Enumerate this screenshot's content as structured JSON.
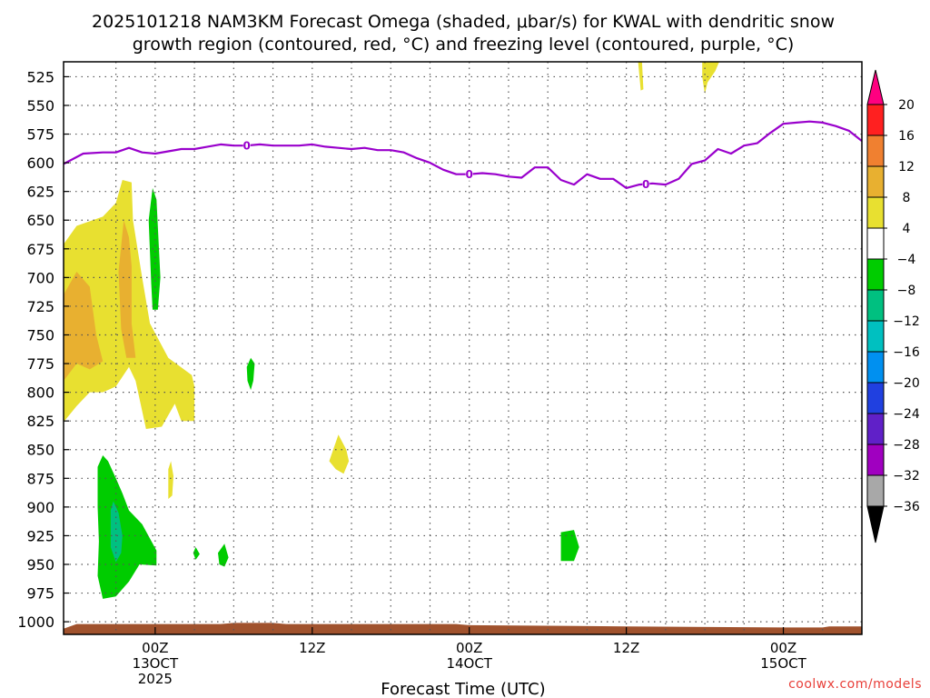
{
  "chart_data": {
    "type": "heatmap",
    "title_lines": [
      "2025101218 NAM3KM Forecast Omega (shaded, μbar/s) for KWAL with dendritic snow",
      "growth region (contoured, red, °C) and freezing level (contoured, purple, °C)"
    ],
    "xlabel": "Forecast Time (UTC)",
    "credit": "coolwx.com/models",
    "x_range_hours": [
      -7,
      54
    ],
    "y_range_hpa": [
      512,
      1011
    ],
    "y_scale": "linear-reversed",
    "grid": true,
    "y_ticks": [
      525,
      550,
      575,
      600,
      625,
      650,
      675,
      700,
      725,
      750,
      775,
      800,
      825,
      850,
      875,
      900,
      925,
      950,
      975,
      1000
    ],
    "x_ticks": [
      {
        "h": 0,
        "lines": [
          "00Z",
          "13OCT",
          "2025"
        ]
      },
      {
        "h": 12,
        "lines": [
          "12Z"
        ]
      },
      {
        "h": 24,
        "lines": [
          "00Z",
          "14OCT"
        ]
      },
      {
        "h": 36,
        "lines": [
          "12Z"
        ]
      },
      {
        "h": 48,
        "lines": [
          "00Z",
          "15OCT"
        ]
      }
    ],
    "x_grid_hours": [
      -3,
      0,
      3,
      6,
      9,
      12,
      15,
      18,
      21,
      24,
      27,
      30,
      33,
      36,
      39,
      42,
      45,
      48,
      51
    ],
    "colorbar": {
      "labels": [
        "20",
        "16",
        "12",
        "8",
        "4",
        "−4",
        "−8",
        "−12",
        "−16",
        "−20",
        "−24",
        "−28",
        "−32",
        "−36"
      ],
      "colors": [
        "#ff0080",
        "#ff2020",
        "#f08030",
        "#e8b030",
        "#e8e030",
        "#ffffff",
        "#00cc00",
        "#00c080",
        "#00c0c0",
        "#0090f0",
        "#2040e0",
        "#6020c8",
        "#a000c0",
        "#a8a8a8",
        "#000000"
      ]
    },
    "freezing_level": {
      "label": "0",
      "color": "#9900cc",
      "label_hours": [
        7,
        24,
        37.5
      ],
      "points": [
        [
          -7,
          601
        ],
        [
          -5.5,
          592
        ],
        [
          -4,
          591
        ],
        [
          -3,
          591
        ],
        [
          -2,
          587
        ],
        [
          -1,
          591
        ],
        [
          0,
          592
        ],
        [
          1,
          590
        ],
        [
          2,
          588
        ],
        [
          3,
          588
        ],
        [
          4,
          586
        ],
        [
          5,
          584
        ],
        [
          6,
          585
        ],
        [
          7,
          585
        ],
        [
          8,
          584
        ],
        [
          9,
          585
        ],
        [
          10,
          585
        ],
        [
          11,
          585
        ],
        [
          12,
          584
        ],
        [
          13,
          586
        ],
        [
          14,
          587
        ],
        [
          15,
          588
        ],
        [
          16,
          587
        ],
        [
          17,
          589
        ],
        [
          18,
          589
        ],
        [
          19,
          591
        ],
        [
          20,
          596
        ],
        [
          21,
          600
        ],
        [
          22,
          606
        ],
        [
          23,
          610
        ],
        [
          24,
          610
        ],
        [
          25,
          609
        ],
        [
          26,
          610
        ],
        [
          27,
          612
        ],
        [
          28,
          613
        ],
        [
          29,
          604
        ],
        [
          30,
          604
        ],
        [
          31,
          615
        ],
        [
          32,
          619
        ],
        [
          33,
          610
        ],
        [
          34,
          614
        ],
        [
          35,
          614
        ],
        [
          36,
          622
        ],
        [
          37,
          619
        ],
        [
          38,
          618
        ],
        [
          39,
          619
        ],
        [
          40,
          614
        ],
        [
          41,
          601
        ],
        [
          42,
          598
        ],
        [
          43,
          588
        ],
        [
          44,
          592
        ],
        [
          45,
          585
        ],
        [
          46,
          583
        ],
        [
          47,
          574
        ],
        [
          48,
          566
        ],
        [
          49,
          565
        ],
        [
          50,
          564
        ],
        [
          51,
          565
        ],
        [
          52,
          568
        ],
        [
          53,
          572
        ],
        [
          54,
          581
        ]
      ]
    },
    "regions": [
      {
        "color": "#e8e030",
        "points": [
          [
            -7,
            671
          ],
          [
            -6,
            655
          ],
          [
            -4,
            647
          ],
          [
            -3,
            635
          ],
          [
            -2.5,
            615
          ],
          [
            -1.8,
            617
          ],
          [
            -1.7,
            650
          ],
          [
            -1,
            700
          ],
          [
            -0.4,
            740
          ],
          [
            1,
            770
          ],
          [
            2.8,
            785
          ],
          [
            3,
            795
          ],
          [
            3,
            825
          ],
          [
            2,
            825
          ],
          [
            1.5,
            810
          ],
          [
            0.5,
            830
          ],
          [
            -0.7,
            832
          ],
          [
            -1.5,
            790
          ],
          [
            -2,
            778
          ],
          [
            -3,
            795
          ],
          [
            -4,
            800
          ],
          [
            -5,
            800
          ],
          [
            -6,
            812
          ],
          [
            -7,
            826
          ]
        ]
      },
      {
        "color": "#e8b030",
        "points": [
          [
            -7,
            715
          ],
          [
            -6,
            695
          ],
          [
            -5,
            708
          ],
          [
            -4.5,
            750
          ],
          [
            -4,
            773
          ],
          [
            -5,
            780
          ],
          [
            -6,
            775
          ],
          [
            -7,
            790
          ]
        ]
      },
      {
        "color": "#e8b030",
        "points": [
          [
            -2.8,
            695
          ],
          [
            -2.4,
            650
          ],
          [
            -2,
            665
          ],
          [
            -1.8,
            690
          ],
          [
            -1.8,
            740
          ],
          [
            -1.5,
            770
          ],
          [
            -2.2,
            770
          ],
          [
            -2.6,
            745
          ]
        ]
      },
      {
        "color": "#e8e030",
        "points": [
          [
            13.3,
            860
          ],
          [
            14,
            837
          ],
          [
            14.6,
            850
          ],
          [
            14.8,
            860
          ],
          [
            14.4,
            871
          ],
          [
            13.8,
            867
          ]
        ]
      },
      {
        "color": "#e8e030",
        "points": [
          [
            1,
            867
          ],
          [
            1.2,
            860
          ],
          [
            1.4,
            873
          ],
          [
            1.3,
            890
          ],
          [
            1,
            893
          ]
        ]
      },
      {
        "color": "#e8e030",
        "points": [
          [
            36.9,
            512
          ],
          [
            37.2,
            512
          ],
          [
            37.3,
            536
          ],
          [
            37.1,
            537
          ]
        ]
      },
      {
        "color": "#e8e030",
        "points": [
          [
            41.8,
            512
          ],
          [
            43.1,
            512
          ],
          [
            42.8,
            520
          ],
          [
            42.2,
            530
          ],
          [
            42,
            540
          ],
          [
            41.8,
            525
          ]
        ]
      },
      {
        "color": "#00cc00",
        "points": [
          [
            -0.5,
            650
          ],
          [
            -0.2,
            622
          ],
          [
            0.1,
            632
          ],
          [
            0.4,
            700
          ],
          [
            0.2,
            728
          ],
          [
            -0.2,
            728
          ],
          [
            -0.3,
            705
          ]
        ]
      },
      {
        "color": "#00cc00",
        "points": [
          [
            7,
            778
          ],
          [
            7.3,
            770
          ],
          [
            7.6,
            775
          ],
          [
            7.5,
            790
          ],
          [
            7.3,
            798
          ],
          [
            7.05,
            790
          ]
        ]
      },
      {
        "color": "#00cc00",
        "points": [
          [
            -4.4,
            865
          ],
          [
            -4,
            855
          ],
          [
            -3.6,
            860
          ],
          [
            -3,
            875
          ],
          [
            -2.5,
            888
          ],
          [
            -2,
            903
          ],
          [
            -1,
            915
          ],
          [
            0.1,
            938
          ],
          [
            0.1,
            951
          ],
          [
            -1.2,
            950
          ],
          [
            -2,
            965
          ],
          [
            -3,
            978
          ],
          [
            -4,
            980
          ],
          [
            -4.4,
            960
          ],
          [
            -4.3,
            930
          ],
          [
            -4.4,
            900
          ]
        ]
      },
      {
        "color": "#00c080",
        "points": [
          [
            -3.4,
            903
          ],
          [
            -3.2,
            895
          ],
          [
            -2.8,
            905
          ],
          [
            -2.5,
            925
          ],
          [
            -2.6,
            940
          ],
          [
            -3,
            948
          ],
          [
            -3.4,
            935
          ]
        ]
      },
      {
        "color": "#00cc00",
        "points": [
          [
            31,
            922
          ],
          [
            32,
            920
          ],
          [
            32.4,
            935
          ],
          [
            32,
            947
          ],
          [
            31,
            947
          ]
        ]
      },
      {
        "color": "#00cc00",
        "points": [
          [
            4.8,
            940
          ],
          [
            5.3,
            932
          ],
          [
            5.6,
            944
          ],
          [
            5.3,
            952
          ],
          [
            4.9,
            950
          ]
        ]
      },
      {
        "color": "#00cc00",
        "points": [
          [
            2.9,
            940
          ],
          [
            3.1,
            935
          ],
          [
            3.4,
            941
          ],
          [
            3.1,
            946
          ]
        ]
      }
    ],
    "terrain": {
      "color": "#a0522d",
      "points": [
        [
          -7,
          1006
        ],
        [
          -6,
          1002
        ],
        [
          0,
          1002
        ],
        [
          5,
          1002
        ],
        [
          6,
          1001
        ],
        [
          9,
          1001
        ],
        [
          10,
          1002
        ],
        [
          23,
          1002
        ],
        [
          24,
          1003
        ],
        [
          36,
          1004
        ],
        [
          48,
          1005
        ],
        [
          51,
          1005
        ],
        [
          51.5,
          1004
        ],
        [
          54,
          1004
        ]
      ]
    }
  }
}
